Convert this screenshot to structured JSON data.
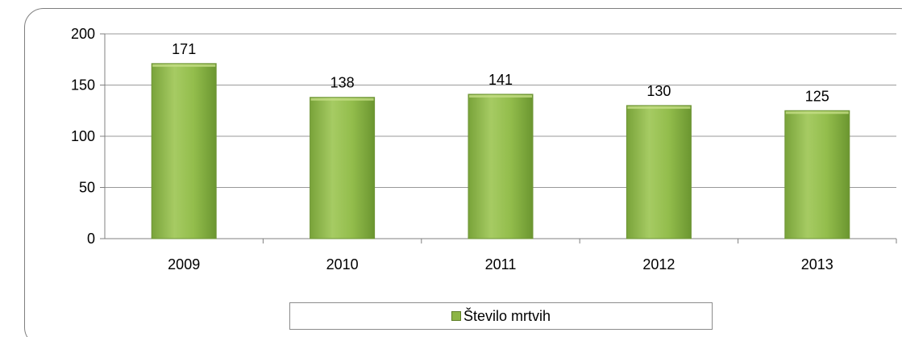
{
  "chart_data": {
    "type": "bar",
    "categories": [
      "2009",
      "2010",
      "2011",
      "2012",
      "2013"
    ],
    "series": [
      {
        "name": "Število mrtvih",
        "values": [
          171,
          138,
          141,
          130,
          125
        ],
        "data_labels": [
          "171",
          "138",
          "141",
          "130",
          "125"
        ]
      }
    ],
    "title": "",
    "xlabel": "",
    "ylabel": "",
    "ylim": [
      0,
      200
    ],
    "yticks": [
      "0",
      "50",
      "100",
      "150",
      "200"
    ],
    "grid": true,
    "legend_position": "bottom",
    "colors": {
      "bar_fill": "#8db545",
      "bar_highlight": "#c4dd86",
      "bar_shadow": "#6e9435",
      "grid": "#9a9a9a"
    }
  }
}
